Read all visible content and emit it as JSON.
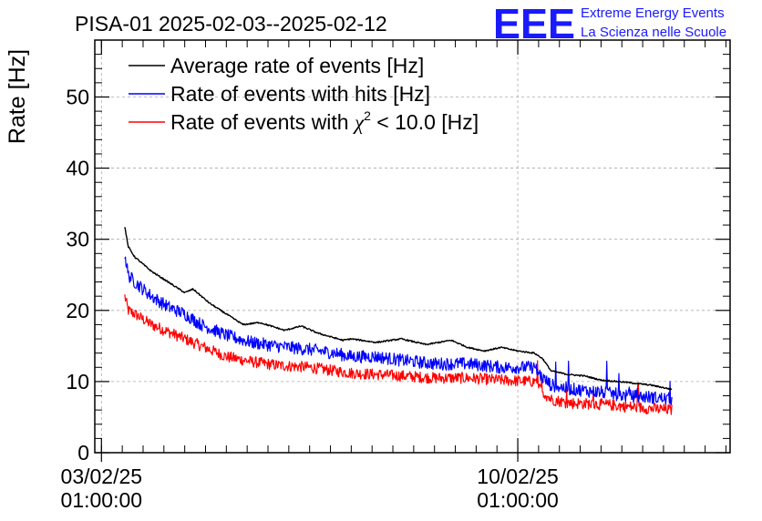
{
  "chart_data": {
    "type": "line",
    "title": "PISA-01 2025-02-03--2025-02-12",
    "ylabel": "Rate [Hz]",
    "xlabel": "",
    "ylim": [
      0,
      58
    ],
    "yticks": [
      0,
      10,
      20,
      30,
      40,
      50
    ],
    "xlim_days": [
      -0.08,
      7.55
    ],
    "xticks": [
      {
        "day": 0,
        "line1": "03/02/25",
        "line2": "01:00:00"
      },
      {
        "day": 5,
        "line1": "10/02/25",
        "line2": "01:00:00"
      }
    ],
    "grid": true,
    "legend_position": "top-left",
    "series": [
      {
        "name": "Average rate of events [Hz]",
        "color": "#000000",
        "noise": 0.1,
        "x": [
          0.28,
          0.32,
          0.4,
          0.6,
          0.8,
          1.0,
          1.1,
          1.3,
          1.5,
          1.7,
          1.9,
          2.2,
          2.4,
          2.6,
          2.9,
          3.0,
          3.3,
          3.6,
          3.9,
          4.2,
          4.4,
          4.6,
          4.8,
          5.0,
          5.2,
          5.3,
          5.4,
          5.6,
          5.8,
          6.0,
          6.3,
          6.6,
          6.85
        ],
        "values": [
          31.8,
          29.0,
          27.5,
          25.5,
          24.0,
          22.5,
          23.0,
          21.0,
          19.5,
          18.0,
          18.3,
          17.2,
          17.8,
          16.8,
          15.8,
          16.0,
          15.5,
          16.0,
          15.2,
          15.8,
          14.8,
          14.3,
          14.8,
          14.3,
          14.0,
          13.2,
          11.5,
          11.0,
          10.8,
          10.2,
          9.9,
          9.5,
          8.9
        ]
      },
      {
        "name": "Rate of events with hits [Hz]",
        "color": "#0000ff",
        "noise": 0.9,
        "x": [
          0.28,
          0.32,
          0.4,
          0.6,
          0.8,
          1.0,
          1.2,
          1.5,
          1.8,
          2.1,
          2.5,
          2.8,
          3.0,
          3.3,
          3.6,
          4.0,
          4.4,
          4.8,
          5.2,
          5.3,
          5.4,
          5.6,
          6.0,
          6.3,
          6.6,
          6.85
        ],
        "values": [
          28.0,
          25.0,
          24.0,
          22.0,
          20.5,
          19.5,
          18.0,
          16.5,
          15.5,
          15.0,
          14.5,
          14.0,
          13.5,
          13.5,
          13.0,
          12.5,
          12.5,
          12.0,
          12.0,
          10.5,
          9.5,
          9.0,
          8.5,
          8.0,
          7.8,
          7.5
        ]
      },
      {
        "name": "Rate of events with χ² < 10.0 [Hz]",
        "color": "#ff0000",
        "noise": 0.8,
        "x": [
          0.28,
          0.32,
          0.4,
          0.6,
          0.8,
          1.0,
          1.2,
          1.5,
          1.8,
          2.1,
          2.5,
          2.8,
          3.0,
          3.3,
          3.6,
          4.0,
          4.4,
          4.8,
          5.2,
          5.3,
          5.4,
          5.6,
          6.0,
          6.3,
          6.6,
          6.85
        ],
        "values": [
          22.0,
          20.0,
          19.5,
          18.0,
          17.0,
          16.0,
          15.0,
          13.5,
          12.8,
          12.3,
          12.0,
          11.5,
          11.2,
          11.0,
          10.8,
          10.5,
          10.5,
          10.2,
          10.0,
          8.5,
          7.5,
          7.0,
          6.8,
          6.5,
          6.2,
          6.0
        ]
      }
    ]
  },
  "legend": {
    "item1": "Average rate of events [Hz]",
    "item2": "Rate of events with hits [Hz]",
    "item3_pre": "Rate of events with ",
    "item3_chi": "χ",
    "item3_sup": "2",
    "item3_post": " < 10.0 [Hz]"
  },
  "logo": {
    "letters": "EEE",
    "line1": "Extreme Energy Events",
    "line2": "La Scienza nelle Scuole",
    "color": "#1a1aff"
  }
}
